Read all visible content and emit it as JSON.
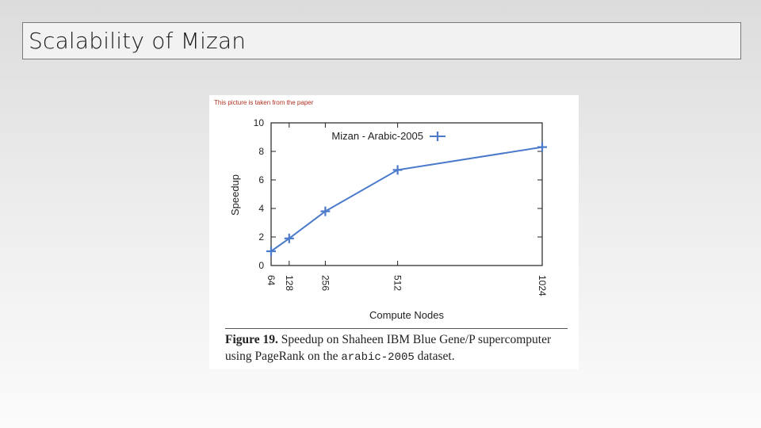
{
  "slide": {
    "title": "Scalability of Mizan"
  },
  "figure": {
    "note": "This picture is taken from the paper",
    "caption": {
      "label": "Figure 19.",
      "text_part1": " Speedup on Shaheen IBM Blue Gene/P supercomputer using PageRank on the ",
      "dataset": "arabic-2005",
      "text_part2": " dataset."
    }
  },
  "chart_data": {
    "type": "line",
    "xlabel": "Compute Nodes",
    "ylabel": "Speedup",
    "x_ticks": [
      "64",
      "128",
      "256",
      "512",
      "1024"
    ],
    "y_ticks": [
      "0",
      "2",
      "4",
      "6",
      "8",
      "10"
    ],
    "xlim": [
      64,
      1024
    ],
    "ylim": [
      0,
      10
    ],
    "grid": false,
    "legend_position": "top-right",
    "series": [
      {
        "name": "Mizan - Arabic-2005",
        "color": "#4a7ac9",
        "marker": "plus",
        "x": [
          64,
          128,
          256,
          512,
          1024
        ],
        "y": [
          1.0,
          1.9,
          3.8,
          6.7,
          8.3
        ]
      }
    ]
  }
}
